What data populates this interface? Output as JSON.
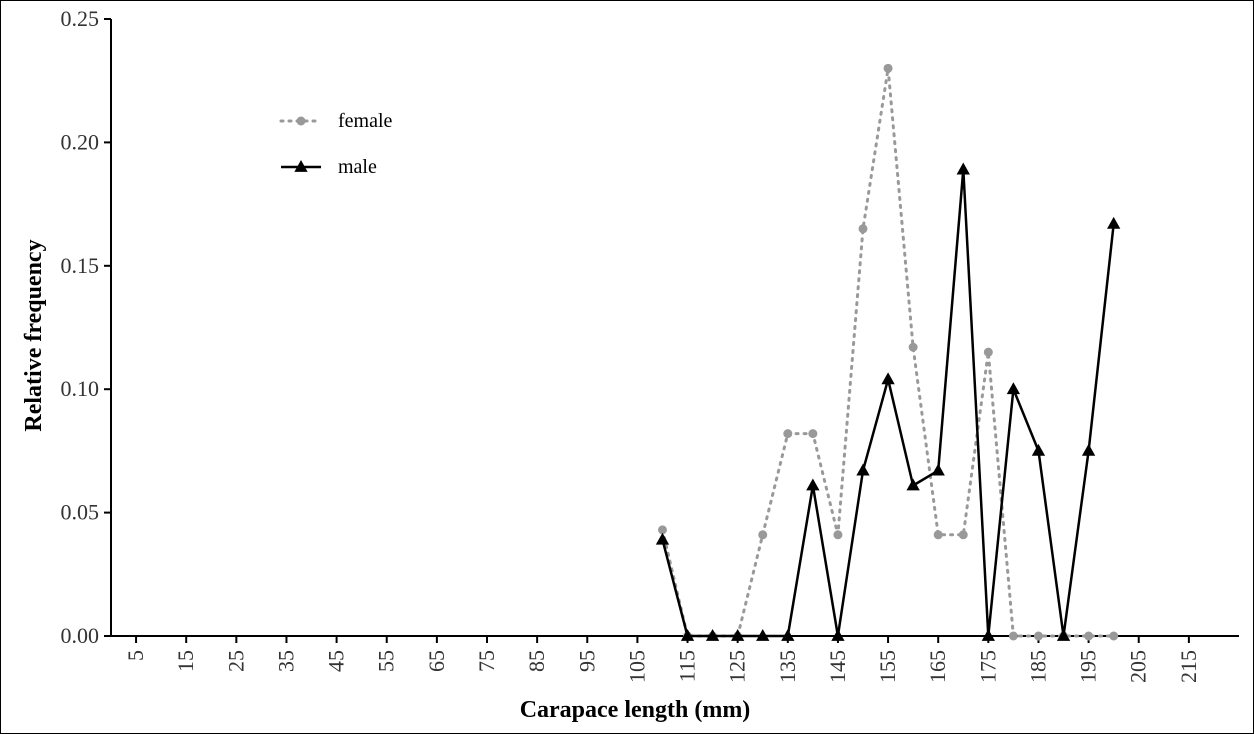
{
  "chart_data": {
    "type": "line",
    "xlabel": "Carapace length (mm)",
    "ylabel": "Relative frequency",
    "xlim": [
      0,
      225
    ],
    "ylim": [
      0,
      0.25
    ],
    "x_ticks": [
      5,
      15,
      25,
      35,
      45,
      55,
      65,
      75,
      85,
      95,
      105,
      115,
      125,
      135,
      145,
      155,
      165,
      175,
      185,
      195,
      205,
      215
    ],
    "y_ticks": [
      "0.00",
      "0.05",
      "0.10",
      "0.15",
      "0.20",
      "0.25"
    ],
    "y_tick_values": [
      0,
      0.05,
      0.1,
      0.15,
      0.2,
      0.25
    ],
    "grid": false,
    "legend_position": "top-left",
    "series": [
      {
        "name": "female",
        "color": "#999999",
        "line_style": "dotted",
        "marker": "circle",
        "x": [
          110,
          115,
          120,
          125,
          130,
          135,
          140,
          145,
          150,
          155,
          160,
          165,
          170,
          175,
          180,
          185,
          190,
          195,
          200
        ],
        "y": [
          0.043,
          0.0,
          0.0,
          0.0,
          0.041,
          0.082,
          0.082,
          0.041,
          0.165,
          0.23,
          0.117,
          0.041,
          0.041,
          0.115,
          0.0,
          0.0,
          0.0,
          0.0,
          0.0
        ]
      },
      {
        "name": "male",
        "color": "#000000",
        "line_style": "solid",
        "marker": "triangle",
        "x": [
          110,
          115,
          120,
          125,
          130,
          135,
          140,
          145,
          150,
          155,
          160,
          165,
          170,
          175,
          180,
          185,
          190,
          195,
          200
        ],
        "y": [
          0.039,
          0.0,
          0.0,
          0.0,
          0.0,
          0.0,
          0.061,
          0.0,
          0.067,
          0.104,
          0.061,
          0.067,
          0.189,
          0.0,
          0.1,
          0.075,
          0.0,
          0.075,
          0.167
        ]
      }
    ]
  }
}
